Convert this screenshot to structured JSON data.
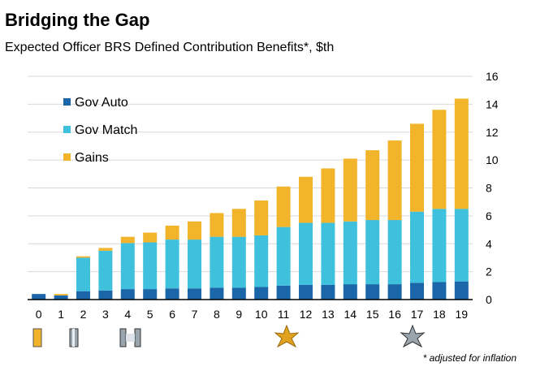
{
  "chart_data": {
    "type": "stacked_bar",
    "title": "Bridging the Gap",
    "subtitle": "Expected Officer BRS Defined Contribution Benefits*, $th",
    "footnote": "* adjusted for inflation",
    "categories": [
      "0",
      "1",
      "2",
      "3",
      "4",
      "5",
      "6",
      "7",
      "8",
      "9",
      "10",
      "11",
      "12",
      "13",
      "14",
      "15",
      "16",
      "17",
      "18",
      "19"
    ],
    "series": [
      {
        "name": "Gov Auto",
        "color": "#1a66a8",
        "values": [
          0.4,
          0.3,
          0.6,
          0.65,
          0.75,
          0.75,
          0.8,
          0.8,
          0.85,
          0.85,
          0.9,
          1.0,
          1.05,
          1.05,
          1.1,
          1.1,
          1.1,
          1.2,
          1.25,
          1.3
        ]
      },
      {
        "name": "Gov Match",
        "color": "#3fc0dc",
        "values": [
          0,
          0,
          2.4,
          2.85,
          3.3,
          3.35,
          3.5,
          3.5,
          3.65,
          3.65,
          3.7,
          4.2,
          4.45,
          4.45,
          4.5,
          4.6,
          4.6,
          5.1,
          5.25,
          5.2
        ]
      },
      {
        "name": "Gains",
        "color": "#f2b42a",
        "values": [
          0,
          0.1,
          0.1,
          0.2,
          0.45,
          0.7,
          1.0,
          1.3,
          1.7,
          2.0,
          2.5,
          2.9,
          3.3,
          3.9,
          4.5,
          5.0,
          5.7,
          6.3,
          7.1,
          7.9
        ]
      }
    ],
    "ylim": [
      0,
      16
    ],
    "yticks": [
      0,
      2,
      4,
      6,
      8,
      10,
      12,
      14,
      16
    ],
    "grid": true,
    "legend": "upper left"
  }
}
